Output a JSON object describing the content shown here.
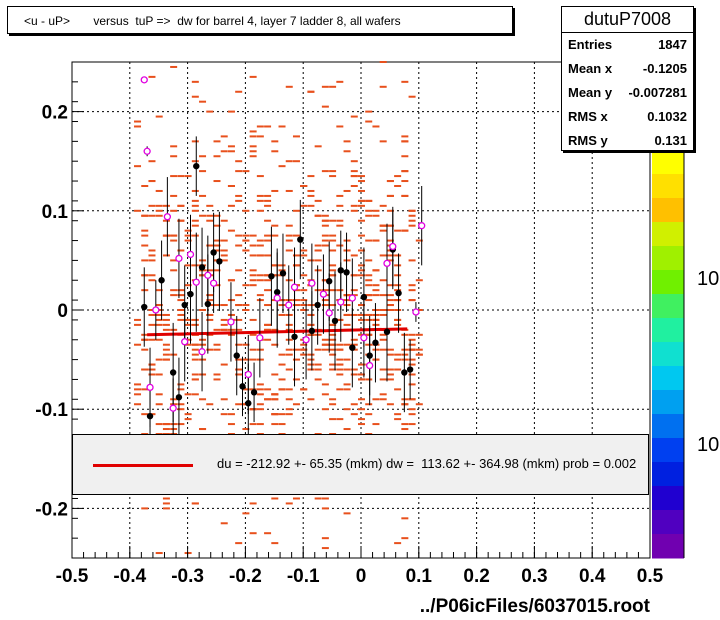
{
  "title": "<u - uP>       versus  tuP =>  dw for barrel 4, layer 7 ladder 8, all wafers",
  "stats": {
    "name": "dutuP7008",
    "rows": [
      {
        "label": "Entries",
        "value": "1847"
      },
      {
        "label": "Mean x",
        "value": "-0.1205"
      },
      {
        "label": "Mean y",
        "value": "-0.007281"
      },
      {
        "label": "RMS x",
        "value": "0.1032"
      },
      {
        "label": "RMS y",
        "value": "0.131"
      }
    ]
  },
  "fit_legend": "du = -212.92 +- 65.35 (mkm) dw =  113.62 +- 364.98 (mkm) prob = 0.002",
  "x_axis_title": "../P06icFiles/6037015.root",
  "z_axis_labels": [
    "10",
    "10"
  ],
  "colors": {
    "fit_line": "#e00000",
    "hist_cell": "#e8501c",
    "profile_black": "#000000",
    "profile_magenta": "#e000e0"
  },
  "chart_data": {
    "type": "scatter",
    "xlim": [
      -0.5,
      0.5
    ],
    "ylim": [
      -0.25,
      0.25
    ],
    "x_ticks": [
      -0.5,
      -0.4,
      -0.3,
      -0.2,
      -0.1,
      0,
      0.1,
      0.2,
      0.3,
      0.4,
      0.5
    ],
    "x_tick_labels": [
      "-0.5",
      "-0.4",
      "-0.3",
      "-0.2",
      "-0.1",
      "0",
      "0.1",
      "0.2",
      "0.3",
      "0.4",
      "0.5"
    ],
    "y_ticks": [
      -0.2,
      -0.1,
      0,
      0.1,
      0.2
    ],
    "y_tick_labels": [
      "-0.2",
      "-0.1",
      "0",
      "0.1",
      "0.2"
    ],
    "grid": true,
    "fit_line": {
      "x": [
        -0.37,
        0.08
      ],
      "y": [
        -0.025,
        -0.019
      ]
    },
    "profile_black": [
      {
        "x": -0.375,
        "y": 0.003,
        "err": 0.04
      },
      {
        "x": -0.365,
        "y": -0.107,
        "err": 0.03
      },
      {
        "x": -0.345,
        "y": 0.03,
        "err": 0.04
      },
      {
        "x": -0.325,
        "y": -0.063,
        "err": 0.05
      },
      {
        "x": -0.315,
        "y": -0.088,
        "err": 0.04
      },
      {
        "x": -0.305,
        "y": 0.005,
        "err": 0.04
      },
      {
        "x": -0.295,
        "y": 0.016,
        "err": 0.05
      },
      {
        "x": -0.285,
        "y": 0.145,
        "err": 0.03
      },
      {
        "x": -0.275,
        "y": 0.043,
        "err": 0.04
      },
      {
        "x": -0.265,
        "y": 0.006,
        "err": 0.05
      },
      {
        "x": -0.255,
        "y": 0.058,
        "err": 0.04
      },
      {
        "x": -0.245,
        "y": 0.049,
        "err": 0.05
      },
      {
        "x": -0.215,
        "y": -0.046,
        "err": 0.04
      },
      {
        "x": -0.205,
        "y": -0.077,
        "err": 0.03
      },
      {
        "x": -0.195,
        "y": -0.094,
        "err": 0.04
      },
      {
        "x": -0.185,
        "y": -0.083,
        "err": 0.03
      },
      {
        "x": -0.155,
        "y": 0.034,
        "err": 0.05
      },
      {
        "x": -0.145,
        "y": 0.018,
        "err": 0.04
      },
      {
        "x": -0.135,
        "y": 0.037,
        "err": 0.04
      },
      {
        "x": -0.115,
        "y": -0.027,
        "err": 0.05
      },
      {
        "x": -0.105,
        "y": 0.071,
        "err": 0.04
      },
      {
        "x": -0.085,
        "y": -0.021,
        "err": 0.04
      },
      {
        "x": -0.075,
        "y": 0.005,
        "err": 0.04
      },
      {
        "x": -0.055,
        "y": 0.029,
        "err": 0.04
      },
      {
        "x": -0.045,
        "y": -0.011,
        "err": 0.05
      },
      {
        "x": -0.035,
        "y": 0.04,
        "err": 0.04
      },
      {
        "x": -0.025,
        "y": 0.038,
        "err": 0.04
      },
      {
        "x": -0.015,
        "y": -0.038,
        "err": 0.04
      },
      {
        "x": 0.005,
        "y": 0.013,
        "err": 0.05
      },
      {
        "x": 0.015,
        "y": -0.046,
        "err": 0.04
      },
      {
        "x": 0.025,
        "y": -0.033,
        "err": 0.04
      },
      {
        "x": 0.045,
        "y": -0.022,
        "err": 0.05
      },
      {
        "x": 0.055,
        "y": 0.061,
        "err": 0.04
      },
      {
        "x": 0.065,
        "y": 0.017,
        "err": 0.04
      },
      {
        "x": 0.075,
        "y": -0.063,
        "err": 0.04
      },
      {
        "x": 0.085,
        "y": -0.06,
        "err": 0.03
      }
    ],
    "profile_magenta": [
      {
        "x": -0.375,
        "y": 0.232,
        "err": 0.0
      },
      {
        "x": -0.37,
        "y": 0.16,
        "err": 0.005
      },
      {
        "x": -0.365,
        "y": -0.078,
        "err": 0.04
      },
      {
        "x": -0.355,
        "y": 0.0,
        "err": 0.03
      },
      {
        "x": -0.335,
        "y": 0.094,
        "err": 0.04
      },
      {
        "x": -0.325,
        "y": -0.099,
        "err": 0.03
      },
      {
        "x": -0.315,
        "y": 0.052,
        "err": 0.04
      },
      {
        "x": -0.305,
        "y": -0.032,
        "err": 0.04
      },
      {
        "x": -0.295,
        "y": 0.056,
        "err": 0.04
      },
      {
        "x": -0.285,
        "y": 0.028,
        "err": 0.05
      },
      {
        "x": -0.275,
        "y": -0.042,
        "err": 0.04
      },
      {
        "x": -0.265,
        "y": 0.035,
        "err": 0.04
      },
      {
        "x": -0.255,
        "y": 0.027,
        "err": 0.03
      },
      {
        "x": -0.225,
        "y": -0.012,
        "err": 0.04
      },
      {
        "x": -0.195,
        "y": -0.065,
        "err": 0.04
      },
      {
        "x": -0.175,
        "y": -0.028,
        "err": 0.04
      },
      {
        "x": -0.145,
        "y": 0.012,
        "err": 0.05
      },
      {
        "x": -0.125,
        "y": 0.005,
        "err": 0.04
      },
      {
        "x": -0.115,
        "y": 0.023,
        "err": 0.04
      },
      {
        "x": -0.095,
        "y": -0.03,
        "err": 0.04
      },
      {
        "x": -0.085,
        "y": 0.027,
        "err": 0.04
      },
      {
        "x": -0.065,
        "y": 0.016,
        "err": 0.04
      },
      {
        "x": -0.055,
        "y": -0.003,
        "err": 0.04
      },
      {
        "x": -0.035,
        "y": 0.008,
        "err": 0.04
      },
      {
        "x": -0.015,
        "y": 0.012,
        "err": 0.04
      },
      {
        "x": 0.005,
        "y": -0.028,
        "err": 0.04
      },
      {
        "x": 0.015,
        "y": -0.056,
        "err": 0.04
      },
      {
        "x": 0.045,
        "y": 0.047,
        "err": 0.04
      },
      {
        "x": 0.055,
        "y": 0.064,
        "err": 0.04
      },
      {
        "x": 0.095,
        "y": -0.002,
        "err": 0.01
      },
      {
        "x": 0.105,
        "y": 0.085,
        "err": 0.04
      }
    ]
  }
}
